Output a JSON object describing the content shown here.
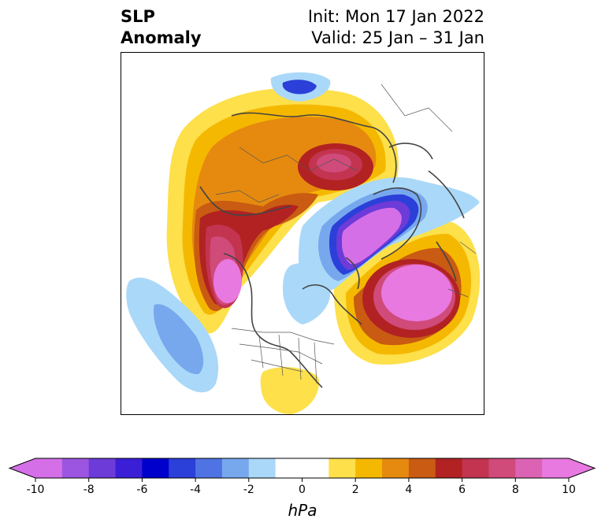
{
  "title": {
    "line1_left": "SLP",
    "line2_left": "Anomaly",
    "line1_right": "Init: Mon 17 Jan 2022",
    "line2_right": "Valid: 25 Jan – 31 Jan"
  },
  "colorbar": {
    "units": "hPa",
    "extend": "both",
    "bounds": [
      -10,
      -9,
      -8,
      -7,
      -6,
      -5,
      -4,
      -3,
      -2,
      -1,
      1,
      2,
      3,
      4,
      5,
      6,
      7,
      8,
      9,
      10
    ],
    "colors": [
      "#d46fe8",
      "#9c55e0",
      "#6c3bd8",
      "#3a1fd6",
      "#0000cc",
      "#2b3fd9",
      "#4f73e3",
      "#77a8ee",
      "#aad8f8",
      "#ffffff",
      "#fde04a",
      "#f5b800",
      "#e58a0f",
      "#c95b12",
      "#b22222",
      "#c23450",
      "#d04a7a",
      "#dc63b4",
      "#e879e0"
    ],
    "under_color": "#d46fe8",
    "over_color": "#e879e0",
    "tick_values": [
      -10,
      -8,
      -6,
      -4,
      -2,
      0,
      2,
      4,
      6,
      8,
      10
    ],
    "tick_labels": [
      "-10",
      "-8",
      "-6",
      "-4",
      "-2",
      "0",
      "2",
      "4",
      "6",
      "8",
      "10"
    ]
  },
  "map": {
    "projection": "north-polar-stereographic",
    "features": [
      "coastlines",
      "country-borders",
      "state-borders"
    ]
  }
}
